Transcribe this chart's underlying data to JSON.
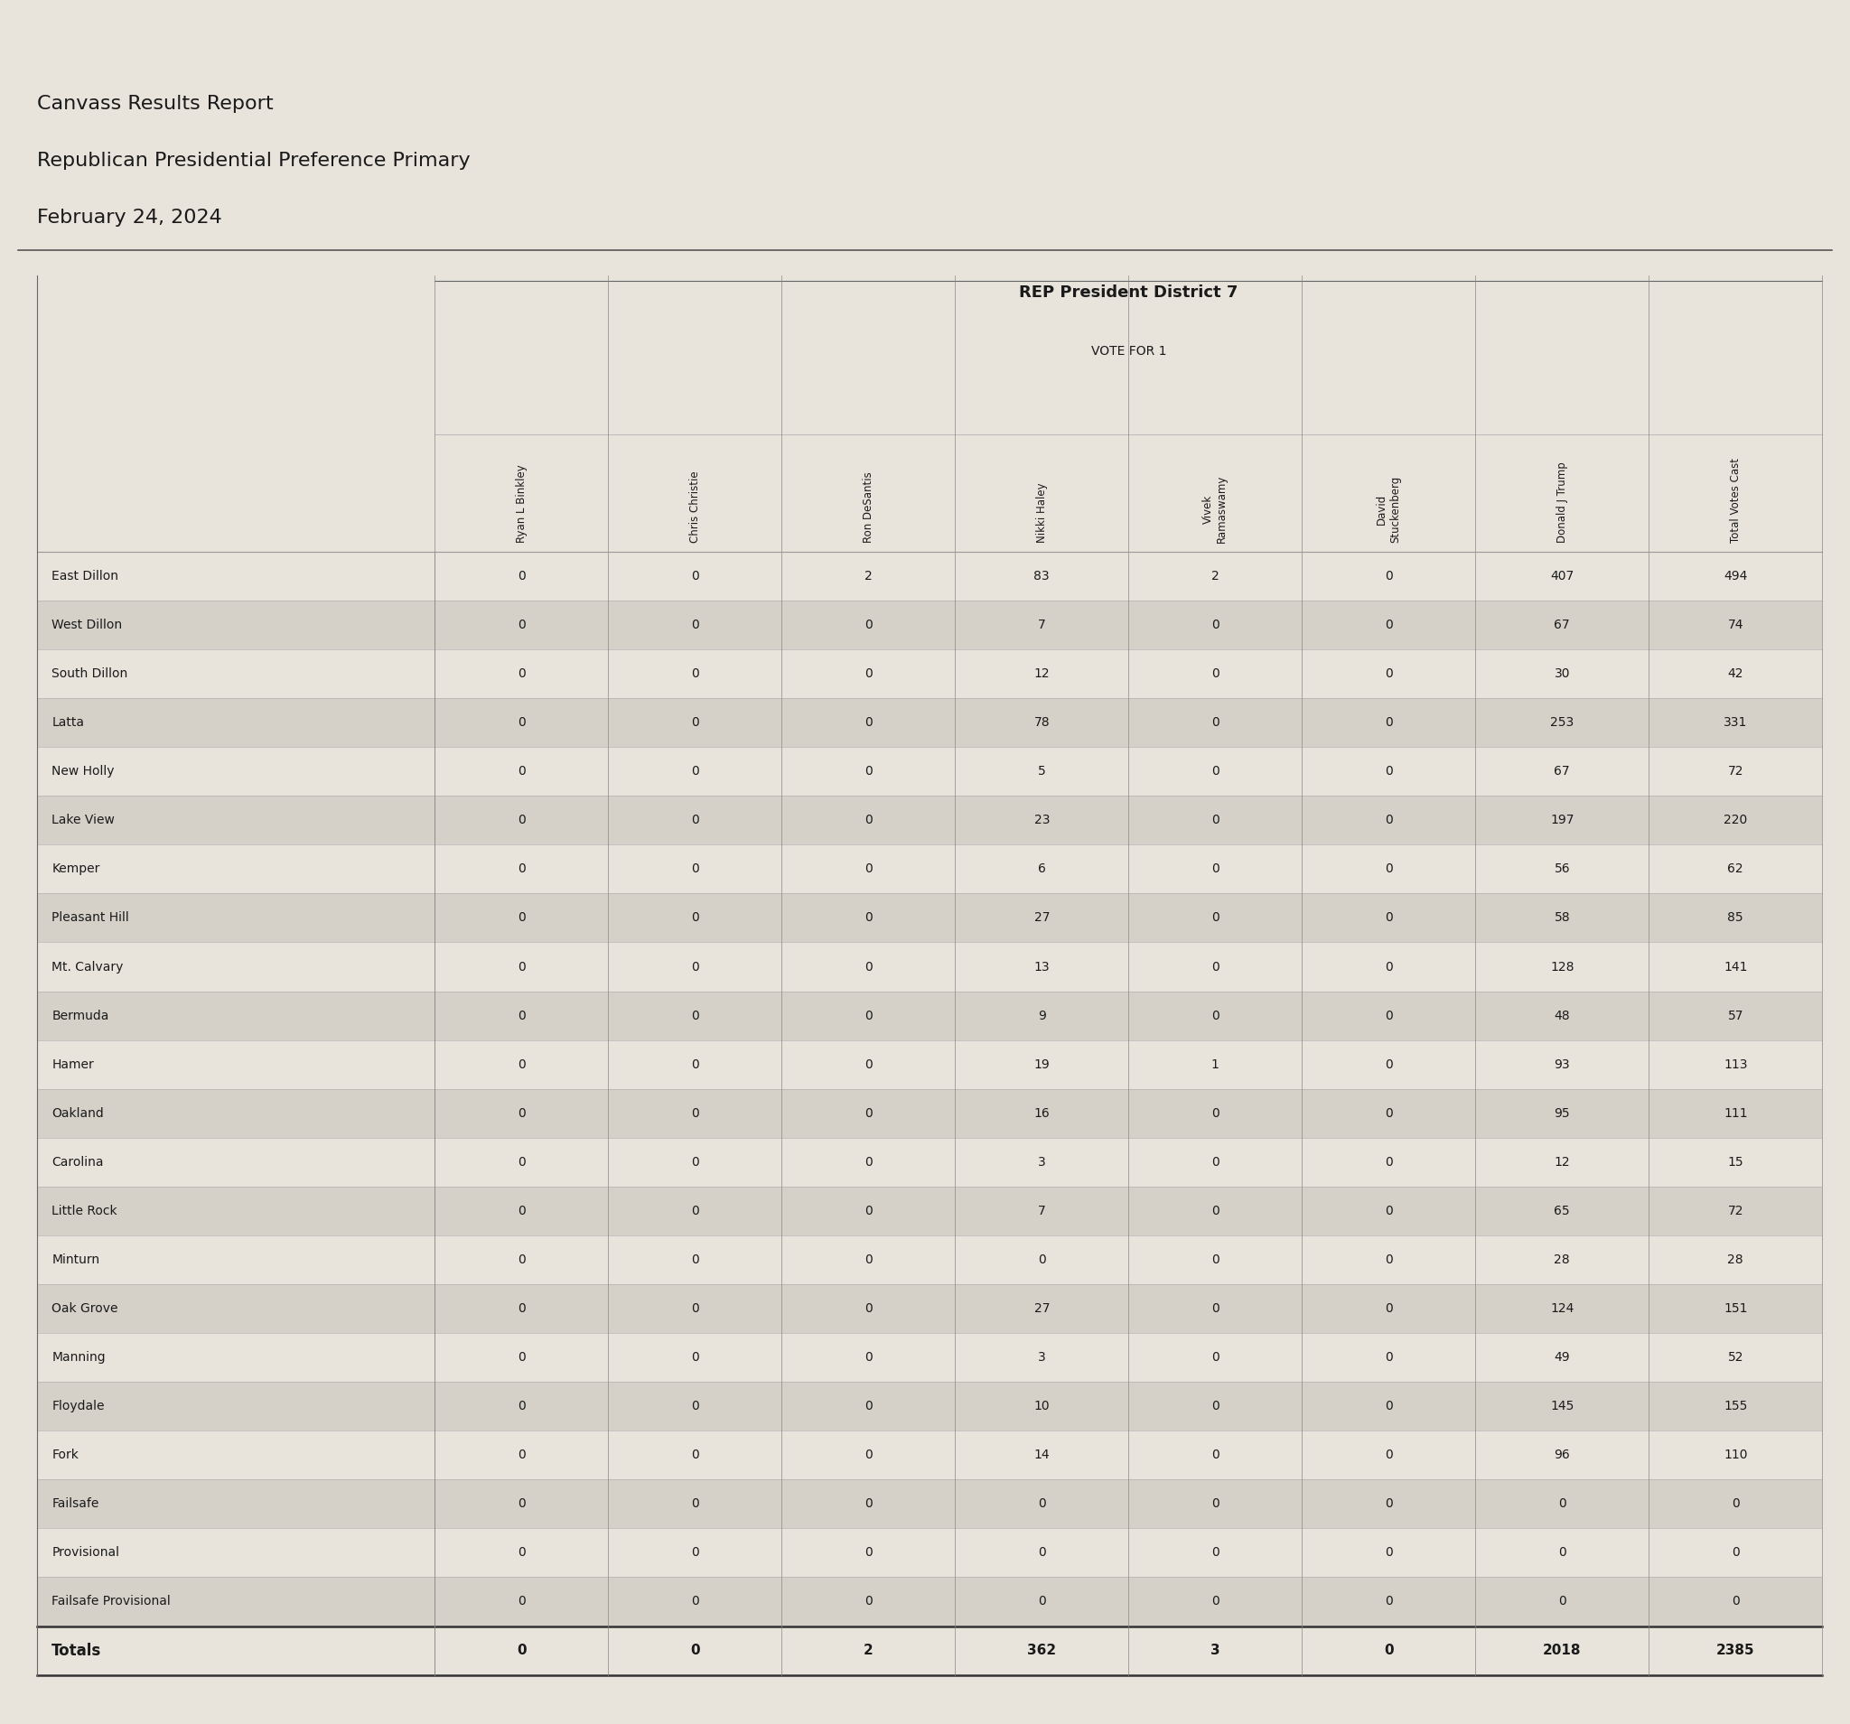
{
  "title_lines": [
    "Canvass Results Report",
    "Republican Presidential Preference Primary",
    "February 24, 2024"
  ],
  "section_title": "REP President District 7",
  "section_subtitle": "VOTE FOR 1",
  "columns": [
    "Ryan L Binkley",
    "Chris Christie",
    "Ron DeSantis",
    "Nikki Haley",
    "Vivek\nRamaswamy",
    "David\nStuckenberg",
    "Donald J Trump",
    "Total Votes Cast"
  ],
  "precincts": [
    "East Dillon",
    "West Dillon",
    "South Dillon",
    "Latta",
    "New Holly",
    "Lake View",
    "Kemper",
    "Pleasant Hill",
    "Mt. Calvary",
    "Bermuda",
    "Hamer",
    "Oakland",
    "Carolina",
    "Little Rock",
    "Minturn",
    "Oak Grove",
    "Manning",
    "Floydale",
    "Fork",
    "Failsafe",
    "Provisional",
    "Failsafe Provisional"
  ],
  "data": [
    [
      0,
      0,
      2,
      83,
      2,
      0,
      407,
      494
    ],
    [
      0,
      0,
      0,
      7,
      0,
      0,
      67,
      74
    ],
    [
      0,
      0,
      0,
      12,
      0,
      0,
      30,
      42
    ],
    [
      0,
      0,
      0,
      78,
      0,
      0,
      253,
      331
    ],
    [
      0,
      0,
      0,
      5,
      0,
      0,
      67,
      72
    ],
    [
      0,
      0,
      0,
      23,
      0,
      0,
      197,
      220
    ],
    [
      0,
      0,
      0,
      6,
      0,
      0,
      56,
      62
    ],
    [
      0,
      0,
      0,
      27,
      0,
      0,
      58,
      85
    ],
    [
      0,
      0,
      0,
      13,
      0,
      0,
      128,
      141
    ],
    [
      0,
      0,
      0,
      9,
      0,
      0,
      48,
      57
    ],
    [
      0,
      0,
      0,
      19,
      1,
      0,
      93,
      113
    ],
    [
      0,
      0,
      0,
      16,
      0,
      0,
      95,
      111
    ],
    [
      0,
      0,
      0,
      3,
      0,
      0,
      12,
      15
    ],
    [
      0,
      0,
      0,
      7,
      0,
      0,
      65,
      72
    ],
    [
      0,
      0,
      0,
      0,
      0,
      0,
      28,
      28
    ],
    [
      0,
      0,
      0,
      27,
      0,
      0,
      124,
      151
    ],
    [
      0,
      0,
      0,
      3,
      0,
      0,
      49,
      52
    ],
    [
      0,
      0,
      0,
      10,
      0,
      0,
      145,
      155
    ],
    [
      0,
      0,
      0,
      14,
      0,
      0,
      96,
      110
    ],
    [
      0,
      0,
      0,
      0,
      0,
      0,
      0,
      0
    ],
    [
      0,
      0,
      0,
      0,
      0,
      0,
      0,
      0
    ],
    [
      0,
      0,
      0,
      0,
      0,
      0,
      0,
      0
    ]
  ],
  "totals_bold": [
    0,
    0,
    2,
    362,
    3,
    0,
    2018,
    2385
  ],
  "bg_color": "#e8e4dc",
  "text_color": "#1a1a1a"
}
